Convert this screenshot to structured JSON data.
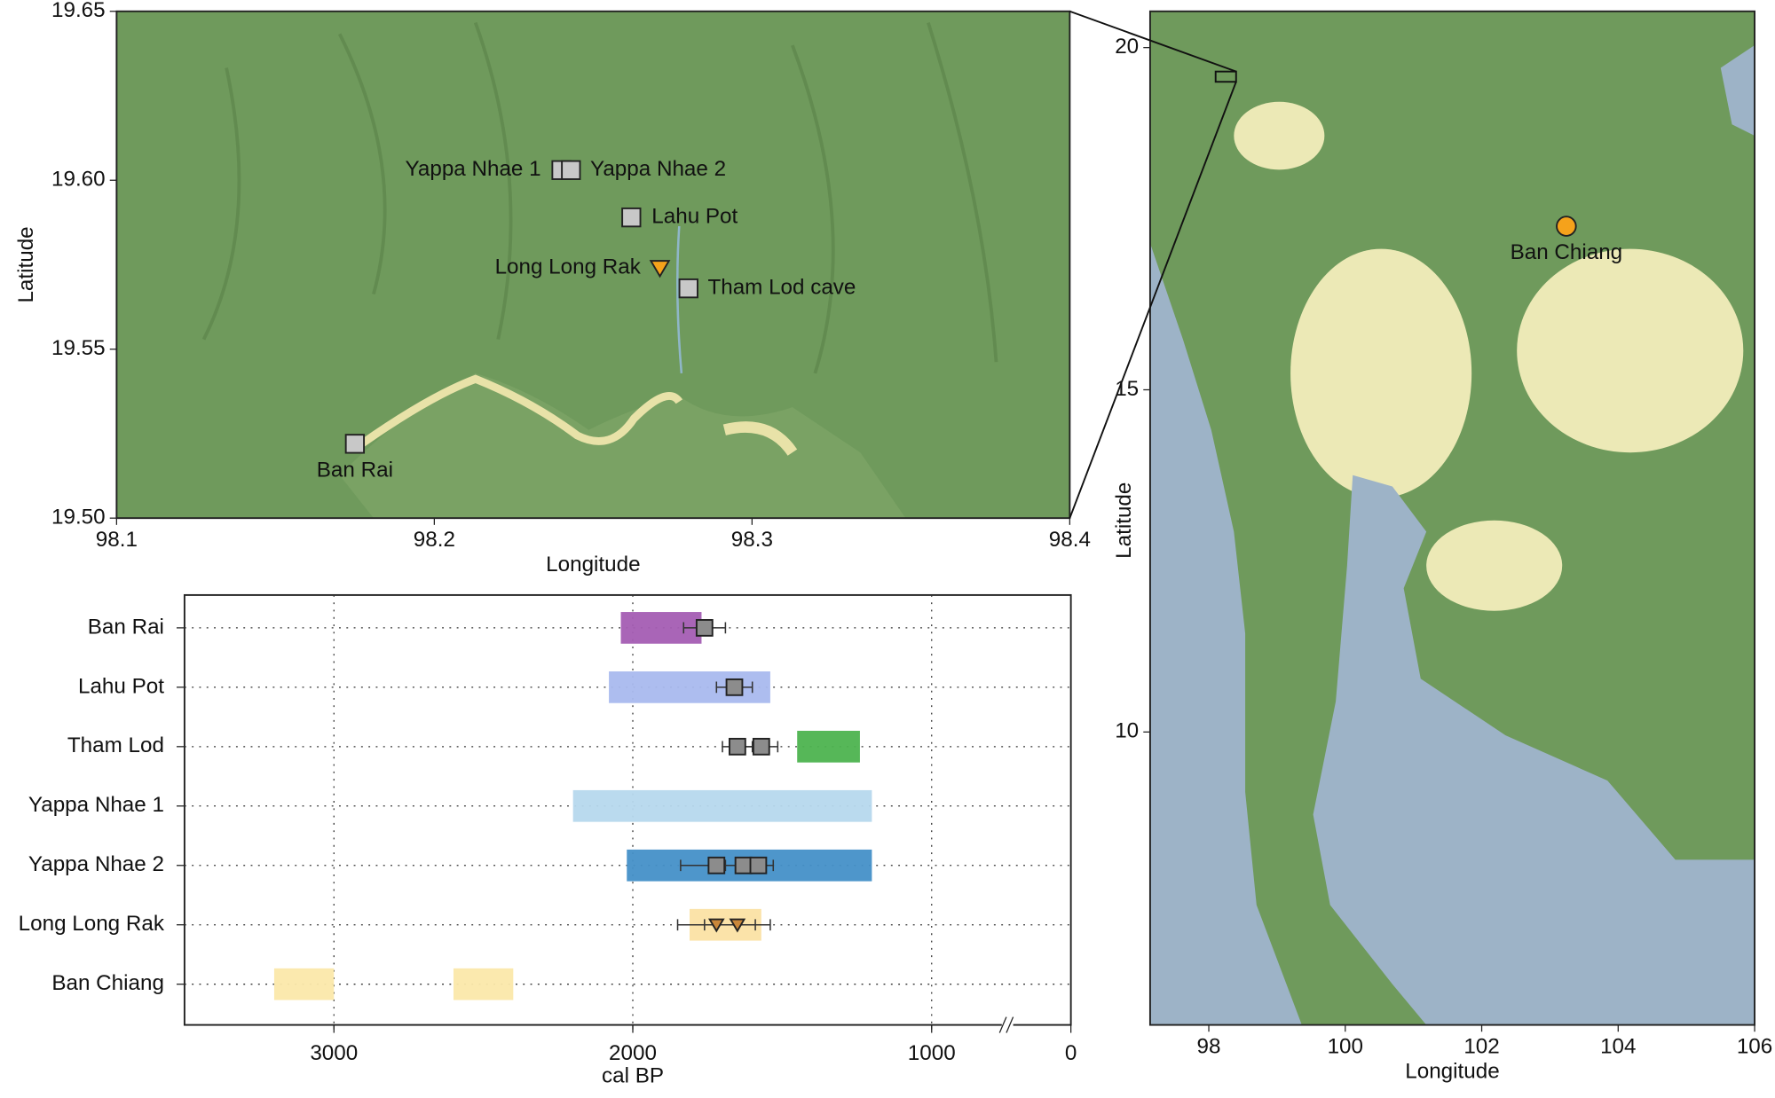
{
  "chart_data": [
    {
      "type": "map",
      "xlabel": "Longitude",
      "ylabel": "Latitude",
      "xlim": [
        98.1,
        98.4
      ],
      "ylim": [
        19.5,
        19.65
      ],
      "xticks": [
        98.1,
        98.2,
        98.3,
        98.4
      ],
      "yticks": [
        {
          "value": 19.5,
          "label": "19.50"
        },
        {
          "value": 19.55,
          "label": "19.55"
        },
        {
          "value": 19.6,
          "label": "19.60"
        },
        {
          "value": 19.65,
          "label": "19.65"
        }
      ],
      "points": [
        {
          "label": "Yappa Nhae 1",
          "x": 98.24,
          "y": 19.603,
          "marker": "square",
          "color": "#c8c8c8"
        },
        {
          "label": "Yappa Nhae 2",
          "x": 98.243,
          "y": 19.603,
          "marker": "square",
          "color": "#c8c8c8"
        },
        {
          "label": "Lahu Pot",
          "x": 98.262,
          "y": 19.589,
          "marker": "square",
          "color": "#c8c8c8"
        },
        {
          "label": "Long Long Rak",
          "x": 98.271,
          "y": 19.574,
          "marker": "triangle",
          "color": "#f5a21b"
        },
        {
          "label": "Tham Lod cave",
          "x": 98.28,
          "y": 19.568,
          "marker": "square",
          "color": "#c8c8c8"
        },
        {
          "label": "Ban Rai",
          "x": 98.175,
          "y": 19.522,
          "marker": "square",
          "color": "#c8c8c8"
        }
      ]
    },
    {
      "type": "map",
      "xlabel": "Longitude",
      "ylabel": "Latitude",
      "xlim": [
        97.14,
        106
      ],
      "ylim": [
        5.72,
        20.53
      ],
      "xticks": [
        98,
        100,
        102,
        104,
        106
      ],
      "yticks": [
        10,
        15,
        20
      ],
      "points": [
        {
          "label": "Ban Chiang",
          "x": 103.24,
          "y": 17.39,
          "marker": "circle",
          "color": "#f5a21b"
        }
      ]
    },
    {
      "type": "range",
      "xlabel": "cal BP",
      "xlim": [
        3500,
        0
      ],
      "x_break": 750,
      "xticks": [
        3000,
        2000,
        1000,
        0
      ],
      "grid": true,
      "rows": [
        {
          "name": "Ban Rai",
          "color": "#a45db3",
          "ranges": [
            [
              2040,
              1770
            ]
          ],
          "marker": "square",
          "points": [
            1760
          ],
          "errors": [
            70
          ]
        },
        {
          "name": "Lahu Pot",
          "color": "#a9b9ee",
          "ranges": [
            [
              2080,
              1540
            ]
          ],
          "marker": "square",
          "points": [
            1660
          ],
          "errors": [
            60
          ]
        },
        {
          "name": "Tham Lod",
          "color": "#4db34f",
          "ranges": [
            [
              1450,
              1240
            ]
          ],
          "marker": "square",
          "points": [
            1650,
            1570
          ],
          "errors": [
            50,
            55
          ]
        },
        {
          "name": "Yappa Nhae 1",
          "color": "#b6d8ed",
          "ranges": [
            [
              2200,
              1200
            ]
          ],
          "marker": "square",
          "points": [],
          "errors": []
        },
        {
          "name": "Yappa Nhae 2",
          "color": "#4590c8",
          "ranges": [
            [
              2020,
              1200
            ]
          ],
          "marker": "square",
          "points": [
            1720,
            1630,
            1580
          ],
          "errors": [
            120,
            60,
            50
          ]
        },
        {
          "name": "Long Long Rak",
          "color": "#fbe2a4",
          "ranges": [
            [
              1810,
              1570
            ]
          ],
          "marker": "triangle",
          "points": [
            1720,
            1650
          ],
          "errors": [
            130,
            110
          ]
        },
        {
          "name": "Ban Chiang",
          "color": "#fbe8aa",
          "ranges": [
            [
              3200,
              3000
            ],
            [
              2600,
              2400
            ]
          ],
          "marker": "square",
          "points": [],
          "errors": []
        }
      ]
    }
  ]
}
